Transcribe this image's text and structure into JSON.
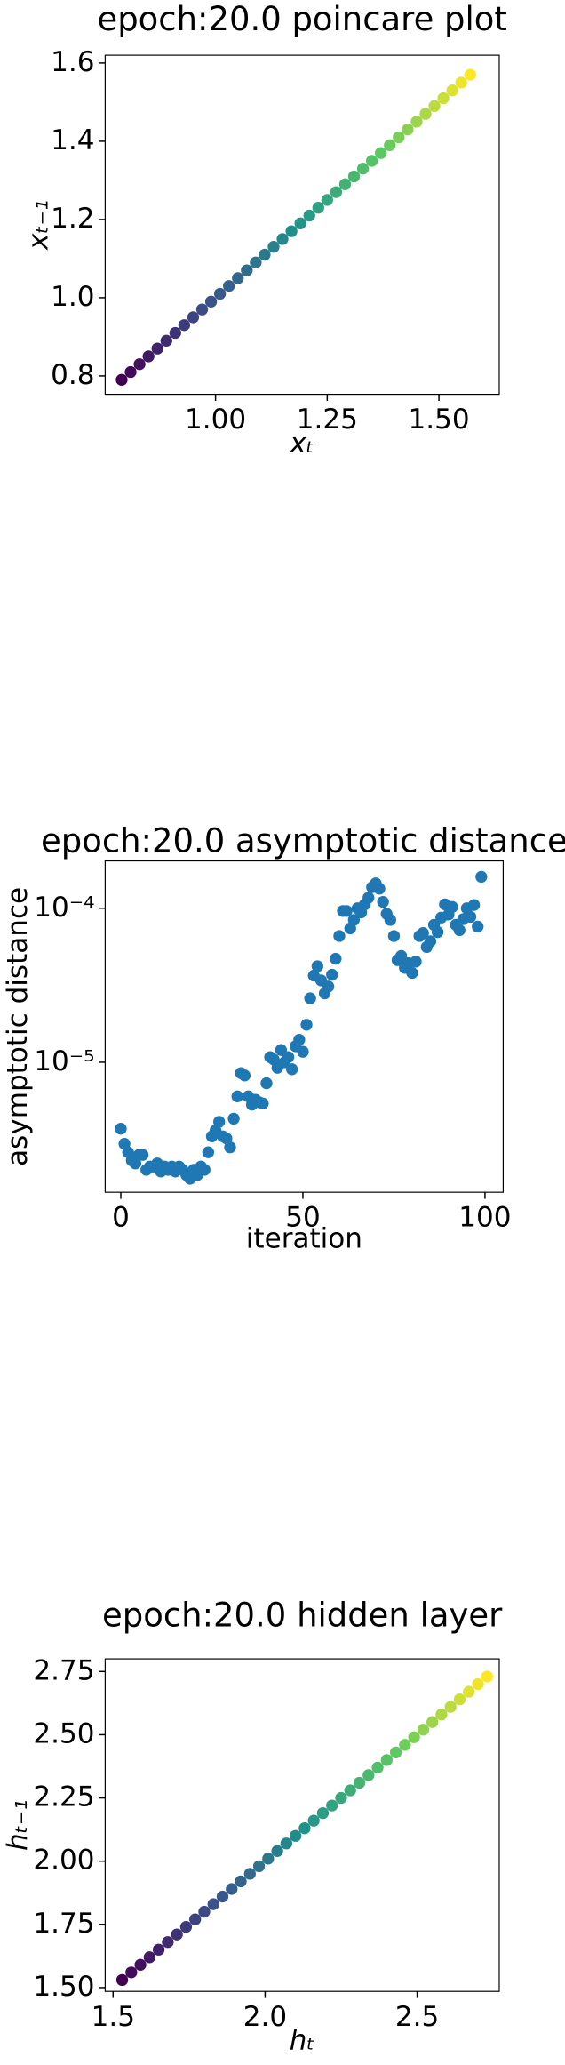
{
  "chart_data": [
    {
      "type": "scatter",
      "title": "epoch:20.0 poincare plot",
      "x_label": "xₜ",
      "y_label": "xₜ₋₁",
      "colormap": [
        "#440154",
        "#3b528b",
        "#21918c",
        "#5ec962",
        "#fde725"
      ],
      "x": [
        0.79,
        0.81,
        0.83,
        0.85,
        0.87,
        0.89,
        0.91,
        0.93,
        0.95,
        0.97,
        0.99,
        1.01,
        1.03,
        1.05,
        1.07,
        1.09,
        1.11,
        1.13,
        1.15,
        1.17,
        1.19,
        1.21,
        1.23,
        1.25,
        1.27,
        1.29,
        1.31,
        1.33,
        1.35,
        1.37,
        1.39,
        1.41,
        1.43,
        1.45,
        1.47,
        1.49,
        1.51,
        1.53,
        1.55,
        1.57
      ],
      "values": [
        0.79,
        0.81,
        0.83,
        0.85,
        0.87,
        0.89,
        0.91,
        0.93,
        0.95,
        0.97,
        0.99,
        1.01,
        1.03,
        1.05,
        1.07,
        1.09,
        1.11,
        1.13,
        1.15,
        1.17,
        1.19,
        1.21,
        1.23,
        1.25,
        1.27,
        1.29,
        1.31,
        1.33,
        1.35,
        1.37,
        1.39,
        1.41,
        1.43,
        1.45,
        1.47,
        1.49,
        1.51,
        1.53,
        1.55,
        1.57
      ],
      "xlim": [
        0.753,
        1.635
      ],
      "ylim": [
        0.753,
        1.62
      ],
      "xticks": [
        {
          "value": 1,
          "label": "1.00"
        },
        1.25,
        {
          "value": 1.5,
          "label": "1.50"
        }
      ],
      "yticks": [
        0.8,
        {
          "value": 1,
          "label": "1.0"
        },
        1.2,
        1.4,
        1.6
      ]
    },
    {
      "type": "scatter",
      "title": "epoch:20.0 asymptotic distance",
      "x_label": "iteration",
      "y_label": "asymptotic distance",
      "color": "#1f77b4",
      "log_scale_y": true,
      "x": [
        0,
        1,
        2,
        3,
        4,
        5,
        6,
        7,
        8,
        9,
        10,
        11,
        12,
        13,
        14,
        15,
        16,
        17,
        18,
        19,
        20,
        21,
        22,
        23,
        24,
        25,
        26,
        27,
        28,
        29,
        30,
        31,
        32,
        33,
        34,
        35,
        36,
        37,
        38,
        39,
        40,
        41,
        42,
        43,
        44,
        45,
        46,
        47,
        48,
        49,
        50,
        51,
        52,
        53,
        54,
        55,
        56,
        57,
        58,
        59,
        60,
        61,
        62,
        63,
        64,
        65,
        66,
        67,
        68,
        69,
        70,
        71,
        72,
        73,
        74,
        75,
        76,
        77,
        78,
        79,
        80,
        81,
        82,
        83,
        84,
        85,
        86,
        87,
        88,
        89,
        90,
        91,
        92,
        93,
        94,
        95,
        96,
        97,
        98,
        99
      ],
      "values": [
        3.7e-06,
        2.95e-06,
        2.6e-06,
        2.3e-06,
        2.2e-06,
        2.5e-06,
        2.5e-06,
        2e-06,
        2.1e-06,
        2.1e-06,
        2.2e-06,
        1.95e-06,
        2.1e-06,
        2e-06,
        2.1e-06,
        1.95e-06,
        2.1e-06,
        2e-06,
        1.85e-06,
        1.75e-06,
        2e-06,
        1.85e-06,
        2.1e-06,
        2e-06,
        2.6e-06,
        3.3e-06,
        3.6e-06,
        4.1e-06,
        3.3e-06,
        3.2e-06,
        2.8e-06,
        4.3e-06,
        6e-06,
        8.5e-06,
        8.2e-06,
        6e-06,
        5.3e-06,
        5.7e-06,
        5.5e-06,
        5.4e-06,
        7.3e-06,
        1.08e-05,
        1.04e-05,
        9.2e-06,
        1.2e-05,
        1e-05,
        1.08e-05,
        9e-06,
        1.27e-05,
        1.4e-05,
        1.17e-05,
        1.75e-05,
        2.6e-05,
        3.65e-05,
        4.2e-05,
        3.4e-05,
        2.8e-05,
        3.1e-05,
        3.7e-05,
        4.7e-05,
        6.6e-05,
        9.6e-05,
        9.6e-05,
        7.4e-05,
        8.4e-05,
        0.0001,
        9.4e-05,
        0.000106,
        0.000117,
        0.000137,
        0.000145,
        0.000134,
        0.00011,
        9.2e-05,
        8.4e-05,
        6.6e-05,
        4.6e-05,
        4.9e-05,
        4.1e-05,
        4.4e-05,
        3.8e-05,
        4.5e-05,
        6.6e-05,
        6.9e-05,
        5.6e-05,
        6.1e-05,
        7.8e-05,
        7e-05,
        8.7e-05,
        0.000106,
        9.1e-05,
        0.000102,
        7.8e-05,
        7.2e-05,
        8.5e-05,
        0.0001,
        8.8e-05,
        0.000105,
        7.6e-05,
        0.00016
      ],
      "xlim": [
        -4.3,
        105
      ],
      "ylim": [
        1.43e-06,
        0.000203
      ],
      "xticks": [
        0,
        50,
        100
      ],
      "yticks": [
        {
          "value": 1e-05,
          "label": "10⁻⁵"
        },
        {
          "value": 0.0001,
          "label": "10⁻⁴"
        }
      ]
    },
    {
      "type": "scatter",
      "title": "epoch:20.0 hidden layer",
      "x_label": "hₜ",
      "y_label": "hₜ₋₁",
      "colormap": [
        "#440154",
        "#3b528b",
        "#21918c",
        "#5ec962",
        "#fde725"
      ],
      "x": [
        1.53,
        1.56,
        1.59,
        1.62,
        1.65,
        1.68,
        1.71,
        1.74,
        1.77,
        1.8,
        1.83,
        1.86,
        1.89,
        1.92,
        1.95,
        1.98,
        2.01,
        2.04,
        2.07,
        2.1,
        2.13,
        2.16,
        2.19,
        2.22,
        2.25,
        2.28,
        2.31,
        2.34,
        2.37,
        2.4,
        2.43,
        2.46,
        2.49,
        2.52,
        2.55,
        2.58,
        2.61,
        2.64,
        2.67,
        2.7,
        2.73
      ],
      "values": [
        1.53,
        1.56,
        1.59,
        1.62,
        1.65,
        1.68,
        1.71,
        1.74,
        1.77,
        1.8,
        1.83,
        1.86,
        1.89,
        1.92,
        1.95,
        1.98,
        2.01,
        2.04,
        2.07,
        2.1,
        2.13,
        2.16,
        2.19,
        2.22,
        2.25,
        2.28,
        2.31,
        2.34,
        2.37,
        2.4,
        2.43,
        2.46,
        2.49,
        2.52,
        2.55,
        2.58,
        2.61,
        2.64,
        2.67,
        2.7,
        2.73
      ],
      "xlim": [
        1.474,
        2.77
      ],
      "ylim": [
        1.485,
        2.8
      ],
      "xticks": [
        1.5,
        {
          "value": 2,
          "label": "2.0"
        },
        2.5
      ],
      "yticks": [
        {
          "value": 1.5,
          "label": "1.50"
        },
        1.75,
        {
          "value": 2,
          "label": "2.00"
        },
        2.25,
        {
          "value": 2.5,
          "label": "2.50"
        },
        2.75
      ]
    }
  ]
}
